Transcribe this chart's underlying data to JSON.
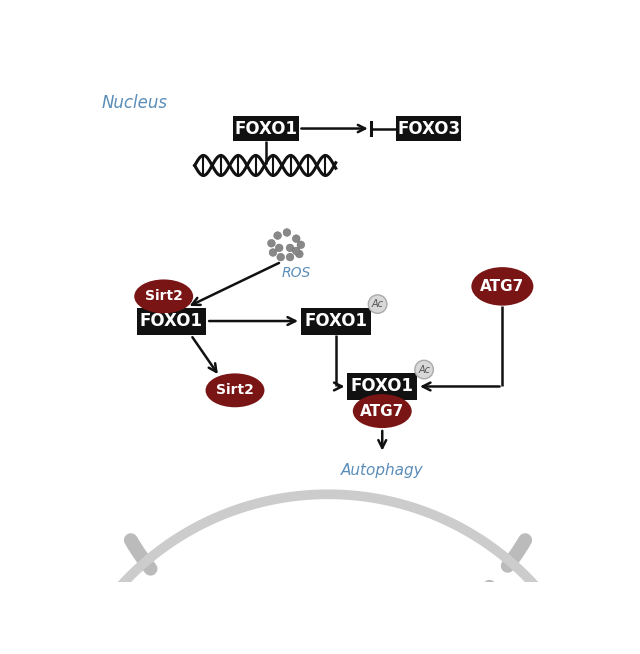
{
  "bg_color": "#ffffff",
  "nucleus_label": "Nucleus",
  "nucleus_label_color": "#5b8db8",
  "ROS_label": "ROS",
  "ROS_label_color": "#5b8db8",
  "Autophagy_label": "Autophagy",
  "Autophagy_label_color": "#5b8db8",
  "box_color": "#111111",
  "box_text_color": "#ffffff",
  "oval_fill": "#7a1515",
  "oval_text_color": "#ffffff",
  "Ac_circle_facecolor": "#d8d8d8",
  "Ac_circle_edgecolor": "#aaaaaa",
  "Ac_text_color": "#555555",
  "arrow_color": "#111111",
  "nucleus_membrane_color": "#bbbbbb",
  "cytoplasm_membrane_color": "#cccccc",
  "ros_dot_color": "#888888",
  "dna_color": "#111111"
}
